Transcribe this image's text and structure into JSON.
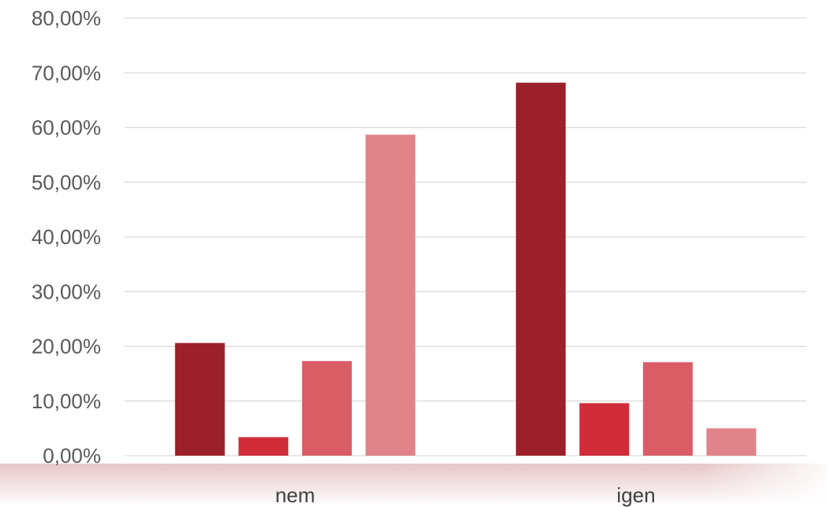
{
  "chart_data": {
    "type": "bar",
    "title": "",
    "xlabel": "",
    "ylabel": "",
    "categories": [
      "nem",
      "igen"
    ],
    "series": [
      {
        "color": "#9b2029",
        "values": [
          20.6,
          68.2
        ]
      },
      {
        "color": "#d02c3a",
        "values": [
          3.4,
          9.6
        ]
      },
      {
        "color": "#da5d66",
        "values": [
          17.3,
          17.1
        ]
      },
      {
        "color": "#e0848a",
        "values": [
          58.7,
          5.0
        ]
      }
    ],
    "ylim": [
      0,
      80
    ],
    "yticks": [
      0,
      10,
      20,
      30,
      40,
      50,
      60,
      70,
      80
    ],
    "ytick_labels": [
      "0,00%",
      "10,00%",
      "20,00%",
      "30,00%",
      "40,00%",
      "50,00%",
      "60,00%",
      "70,00%",
      "80,00%"
    ],
    "grid": true,
    "legend": "none"
  }
}
